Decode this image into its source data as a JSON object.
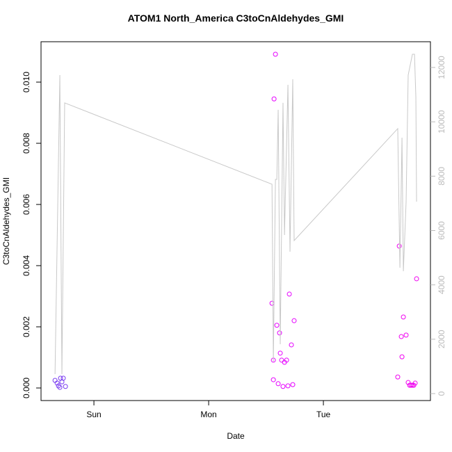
{
  "chart_data": {
    "type": "scatter",
    "title": "ATOM1 North_America C3toCnAldehydes_GMI",
    "x_label": "Date",
    "y_label": "C3toCnAldehydes_GMI",
    "xlim": [
      -0.461,
      2.933
    ],
    "xticks": [
      {
        "value": 0,
        "label": "Sun"
      },
      {
        "value": 1,
        "label": "Mon"
      },
      {
        "value": 2,
        "label": "Tue"
      }
    ],
    "ylim": [
      -0.00041,
      0.01132
    ],
    "yticks": [
      {
        "value": 0,
        "label": "0.000"
      },
      {
        "value": 0.002,
        "label": "0.002"
      },
      {
        "value": 0.004,
        "label": "0.004"
      },
      {
        "value": 0.006,
        "label": "0.006"
      },
      {
        "value": 0.008,
        "label": "0.008"
      },
      {
        "value": 0.01,
        "label": "0.010"
      }
    ],
    "y2lim": [
      -256,
      12947
    ],
    "y2ticks": [
      0,
      2000,
      4000,
      6000,
      8000,
      10000,
      12000
    ],
    "y2_color": "#bbbbbb",
    "series": [
      {
        "type": "scatter",
        "x": [
          -0.339,
          -0.321,
          -0.309,
          -0.297,
          -0.291,
          -0.279,
          -0.267,
          -0.248,
          1.552,
          1.564,
          1.564,
          1.57,
          1.582,
          1.594,
          1.606,
          1.618,
          1.624,
          1.636,
          1.648,
          1.661,
          1.679,
          1.691,
          1.703,
          1.721,
          1.733,
          1.745,
          2.648,
          2.661,
          2.679,
          2.685,
          2.697,
          2.721,
          2.739,
          2.752,
          2.764,
          2.776,
          2.788,
          2.8,
          2.812
        ],
        "values": [
          0.00025,
          0.00016,
          7e-05,
          2e-05,
          0.00032,
          0.0002,
          0.00032,
          5e-05,
          0.00277,
          0.00091,
          0.00027,
          0.00945,
          0.01091,
          0.00205,
          0.00014,
          0.0018,
          0.00114,
          0.00091,
          5e-05,
          0.00084,
          0.00091,
          7e-05,
          0.00307,
          0.00141,
          0.00011,
          0.0022,
          0.00036,
          0.00464,
          0.00168,
          0.00102,
          0.00232,
          0.00173,
          0.00018,
          9e-05,
          9e-05,
          9e-05,
          9e-05,
          0.00016,
          0.00357
        ],
        "colors": [
          "#7a3cf0",
          "#7a3cf0",
          "#7a3cf0",
          "#7a3cf0",
          "#7a3cf0",
          "#7a3cf0",
          "#7a3cf0",
          "#7a3cf0",
          "#e600ff",
          "#e600ff",
          "#e600ff",
          "#e600ff",
          "#e600ff",
          "#e600ff",
          "#e600ff",
          "#e600ff",
          "#e600ff",
          "#e600ff",
          "#e600ff",
          "#e600ff",
          "#e600ff",
          "#e600ff",
          "#e600ff",
          "#e600ff",
          "#e600ff",
          "#e600ff",
          "#f000f0",
          "#f000f0",
          "#f000f0",
          "#f000f0",
          "#f000f0",
          "#f000f0",
          "#f000f0",
          "#f000f0",
          "#f000f0",
          "#f000f0",
          "#f000f0",
          "#f000f0",
          "#f000f0"
        ]
      },
      {
        "type": "line",
        "axis": "y2",
        "color": "#c8c8c8",
        "x": [
          -0.339,
          -0.297,
          -0.279,
          -0.255,
          1.552,
          1.564,
          1.582,
          1.594,
          1.606,
          1.624,
          1.648,
          1.661,
          1.691,
          1.709,
          1.733,
          1.745,
          2.648,
          2.667,
          2.685,
          2.697,
          2.721,
          2.739,
          2.776,
          2.794,
          2.806,
          2.812
        ],
        "values": [
          717,
          11720,
          717,
          10697,
          7703,
          1177,
          7882,
          7882,
          10441,
          1817,
          10697,
          5835,
          11362,
          5220,
          11567,
          5630,
          9750,
          4632,
          9417,
          4504,
          7063,
          11720,
          12488,
          12488,
          10901,
          7063
        ]
      }
    ]
  }
}
